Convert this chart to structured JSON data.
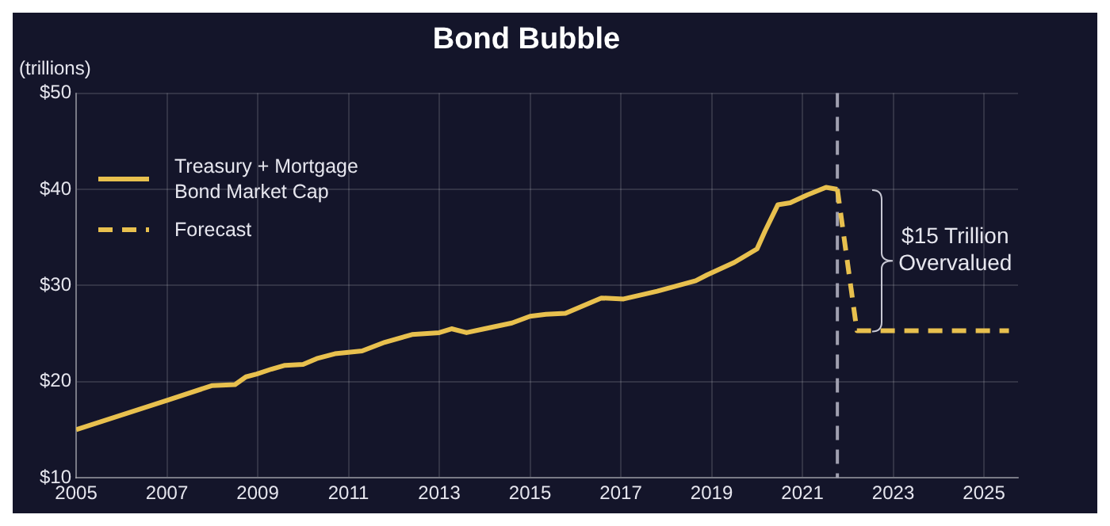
{
  "chart_data": {
    "type": "line",
    "title": "Bond Bubble",
    "ylabel": "(trillions)",
    "xlim": [
      2005,
      2025.75
    ],
    "xticks": [
      2005,
      2007,
      2009,
      2011,
      2013,
      2015,
      2017,
      2019,
      2021,
      2023,
      2025
    ],
    "ylim": [
      10,
      50
    ],
    "yticks": [
      {
        "value": 10,
        "label": "$10"
      },
      {
        "value": 20,
        "label": "$20"
      },
      {
        "value": 30,
        "label": "$30"
      },
      {
        "value": 40,
        "label": "$40"
      },
      {
        "value": 50,
        "label": "$50"
      }
    ],
    "grid": true,
    "legend": "top left",
    "marker": "none",
    "series": [
      {
        "name": "Treasury + Mortgage Bond Market Cap",
        "color": "#e8c04e",
        "line_style": "solid",
        "x": [
          2005,
          2007.03,
          2008,
          2008.5,
          2008.74,
          2008.98,
          2009.3,
          2009.6,
          2010,
          2010.3,
          2010.7,
          2011.3,
          2011.8,
          2012.4,
          2013,
          2013.27,
          2013.6,
          2014,
          2014.6,
          2015,
          2015.35,
          2015.78,
          2016.57,
          2017.06,
          2017.8,
          2018.65,
          2018.9,
          2019.5,
          2020,
          2020.18,
          2020.46,
          2020.73,
          2021.1,
          2021.52,
          2021.77
        ],
        "values": [
          15.0,
          18.1,
          19.6,
          19.7,
          20.5,
          20.8,
          21.3,
          21.7,
          21.8,
          22.4,
          22.9,
          23.2,
          24.1,
          24.9,
          25.1,
          25.5,
          25.1,
          25.5,
          26.1,
          26.8,
          27.0,
          27.1,
          28.7,
          28.6,
          29.4,
          30.5,
          31.1,
          32.4,
          33.8,
          35.7,
          38.4,
          38.6,
          39.4,
          40.2,
          40.0
        ]
      },
      {
        "name": "Forecast",
        "color": "#e8c04e",
        "line_style": "dashed",
        "x": [
          2021.77,
          2022.2,
          2025.55
        ],
        "values": [
          40.0,
          25.3,
          25.3
        ]
      }
    ],
    "ref_lines": [
      {
        "axis": "x",
        "value": 2021.77,
        "color": "#a0a0b0",
        "line_style": "dashed"
      }
    ],
    "annotations": [
      "$15 Trillion\nOvervalued"
    ]
  }
}
